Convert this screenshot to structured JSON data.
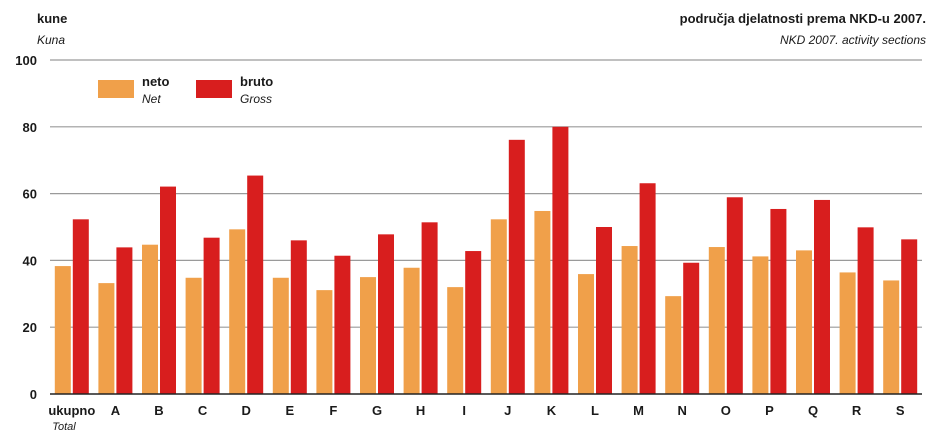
{
  "chart_data": {
    "type": "bar",
    "ylabel": "kune",
    "ylabel_en": "Kuna",
    "title": "područja djelatnosti prema NKD-u 2007.",
    "title_en": "NKD 2007. activity sections",
    "ylim": [
      0,
      100
    ],
    "yticks": [
      0,
      20,
      40,
      60,
      80,
      100
    ],
    "grid": true,
    "legend_position": "top-left",
    "categories": [
      "ukupno",
      "A",
      "B",
      "C",
      "D",
      "E",
      "F",
      "G",
      "H",
      "I",
      "J",
      "K",
      "L",
      "M",
      "N",
      "O",
      "P",
      "Q",
      "R",
      "S"
    ],
    "first_category_en": "Total",
    "series": [
      {
        "name": "neto",
        "name_en": "Net",
        "color": "#f0a04a",
        "values": [
          38.3,
          33.2,
          44.7,
          34.8,
          49.3,
          34.8,
          31.1,
          35.0,
          37.8,
          32.0,
          52.3,
          54.8,
          35.9,
          44.3,
          29.3,
          44.0,
          41.2,
          43.0,
          36.4,
          34.0
        ]
      },
      {
        "name": "bruto",
        "name_en": "Gross",
        "color": "#d81e1e",
        "values": [
          52.3,
          43.9,
          62.1,
          46.8,
          65.4,
          46.0,
          41.4,
          47.8,
          51.4,
          42.8,
          76.1,
          80.0,
          50.0,
          63.1,
          39.3,
          58.9,
          55.4,
          58.1,
          49.9,
          46.3
        ]
      }
    ]
  }
}
